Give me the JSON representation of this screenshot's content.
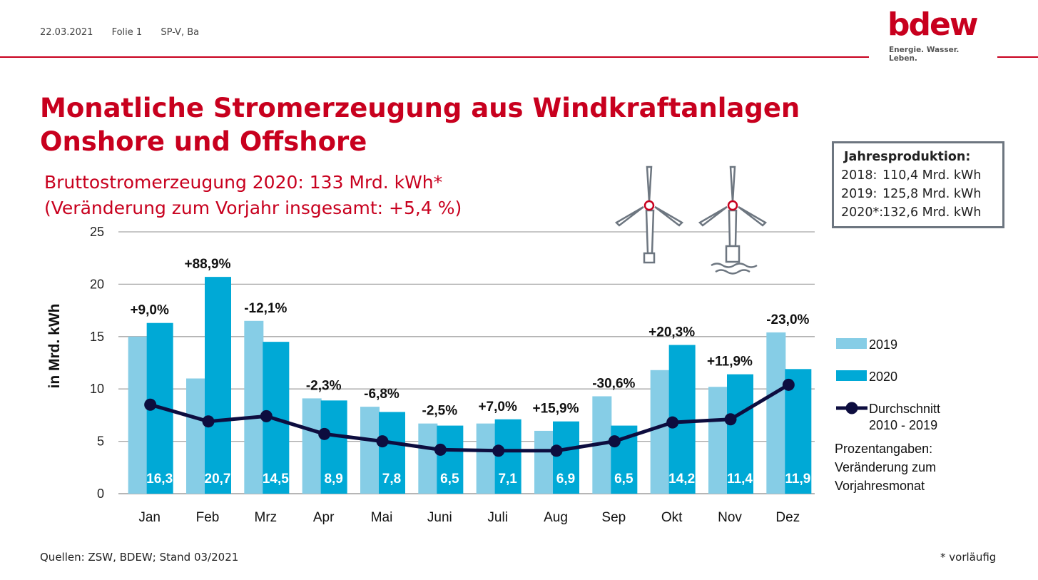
{
  "header": {
    "date": "22.03.2021",
    "slide": "Folie 1",
    "author": "SP-V, Ba"
  },
  "logo": {
    "word": "bdew",
    "tagline": "Energie. Wasser. Leben."
  },
  "slide_title_line1": "Monatliche Stromerzeugung aus Windkraftanlagen",
  "slide_title_line2": "Onshore und Offshore",
  "subtitle_line1": "Bruttostromerzeugung 2020: 133 Mrd. kWh*",
  "subtitle_line2": "(Veränderung zum Vorjahr insgesamt: +5,4 %)",
  "infobox": {
    "heading": "Jahresproduktion:",
    "rows": [
      {
        "year": "2018:",
        "value": "110,4 Mrd. kWh"
      },
      {
        "year": "2019:",
        "value": "125,8 Mrd. kWh"
      },
      {
        "year": "2020*:",
        "value": "132,6 Mrd. kWh"
      }
    ]
  },
  "footer": {
    "sources": "Quellen: ZSW, BDEW; Stand 03/2021",
    "note": "* vorläufig"
  },
  "legend_note": [
    "Prozentangaben:",
    "Veränderung zum",
    "Vorjahresmonat"
  ],
  "colors": {
    "brand_red": "#c8001e",
    "series_2019": "#86cde6",
    "series_2020": "#00a9d6",
    "avg_line": "#0d0d3f",
    "grid": "#a6a6a6",
    "icon": "#6d7680"
  },
  "icons": [
    "onshore-wind-turbine-icon",
    "offshore-wind-turbine-icon"
  ],
  "chart_data": {
    "type": "bar",
    "ylabel": "in Mrd. kWh",
    "ylim": [
      0,
      25
    ],
    "yticks": [
      0,
      5,
      10,
      15,
      20,
      25
    ],
    "grid": true,
    "legend_position": "right",
    "categories": [
      "Jan",
      "Feb",
      "Mrz",
      "Apr",
      "Mai",
      "Juni",
      "Juli",
      "Aug",
      "Sep",
      "Okt",
      "Nov",
      "Dez"
    ],
    "series": [
      {
        "name": "2019",
        "values": [
          15.0,
          11.0,
          16.5,
          9.1,
          8.3,
          6.7,
          6.7,
          6.0,
          9.3,
          11.8,
          10.2,
          15.4
        ]
      },
      {
        "name": "2020",
        "values": [
          16.3,
          20.7,
          14.5,
          8.9,
          7.8,
          6.5,
          7.1,
          6.9,
          6.5,
          14.2,
          11.4,
          11.9
        ],
        "value_labels": [
          "16,3",
          "20,7",
          "14,5",
          "8,9",
          "7,8",
          "6,5",
          "7,1",
          "6,9",
          "6,5",
          "14,2",
          "11,4",
          "11,9"
        ]
      },
      {
        "name": "Durchschnitt 2010 - 2019",
        "type": "line",
        "values": [
          8.5,
          6.9,
          7.4,
          5.7,
          5.0,
          4.2,
          4.1,
          4.1,
          5.0,
          6.8,
          7.1,
          10.4
        ]
      }
    ],
    "change_labels": [
      "+9,0%",
      "+88,9%",
      "-12,1%",
      "-2,3%",
      "-6,8%",
      "-2,5%",
      "+7,0%",
      "+15,9%",
      "-30,6%",
      "+20,3%",
      "+11,9%",
      "-23,0%"
    ],
    "legend": [
      "2019",
      "2020",
      "Durchschnitt",
      "2010 - 2019"
    ]
  }
}
